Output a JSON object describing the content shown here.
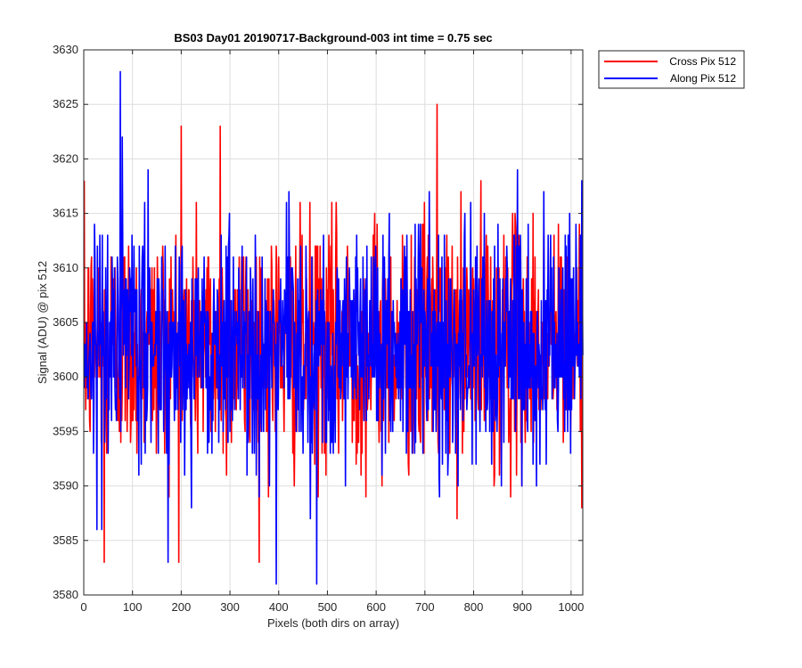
{
  "chart_data": {
    "type": "line",
    "title": "BS03 Day01 20190717-Background-003 int time = 0.75 sec",
    "xlabel": "Pixels (both dirs on array)",
    "ylabel": "Signal (ADU) @ pix 512",
    "xlim": [
      0,
      1024
    ],
    "ylim": [
      3580,
      3630
    ],
    "xticks": [
      0,
      100,
      200,
      300,
      400,
      500,
      600,
      700,
      800,
      900,
      1000
    ],
    "yticks": [
      3580,
      3585,
      3590,
      3595,
      3600,
      3605,
      3610,
      3615,
      3620,
      3625,
      3630
    ],
    "grid": true,
    "legend_position": "outside-top-right",
    "series": [
      {
        "name": "Cross Pix 512",
        "color": "#ff0000",
        "x_range": [
          1,
          1024
        ],
        "mean": 3603,
        "std": 5.5,
        "values_min": 3583,
        "values_max": 3625
      },
      {
        "name": "Along Pix 512",
        "color": "#0000ff",
        "x_range": [
          1,
          1024
        ],
        "mean": 3603,
        "std": 5.5,
        "values_min": 3581,
        "values_max": 3628
      }
    ],
    "notable_points": [
      {
        "series": "Along Pix 512",
        "x": 75,
        "y": 3628
      },
      {
        "series": "Cross Pix 512",
        "x": 42,
        "y": 3583
      },
      {
        "series": "Along Pix 512",
        "x": 395,
        "y": 3581
      },
      {
        "series": "Along Pix 512",
        "x": 478,
        "y": 3581
      },
      {
        "series": "Cross Pix 512",
        "x": 725,
        "y": 3625
      },
      {
        "series": "Cross Pix 512",
        "x": 200,
        "y": 3623
      },
      {
        "series": "Cross Pix 512",
        "x": 280,
        "y": 3623
      }
    ]
  }
}
